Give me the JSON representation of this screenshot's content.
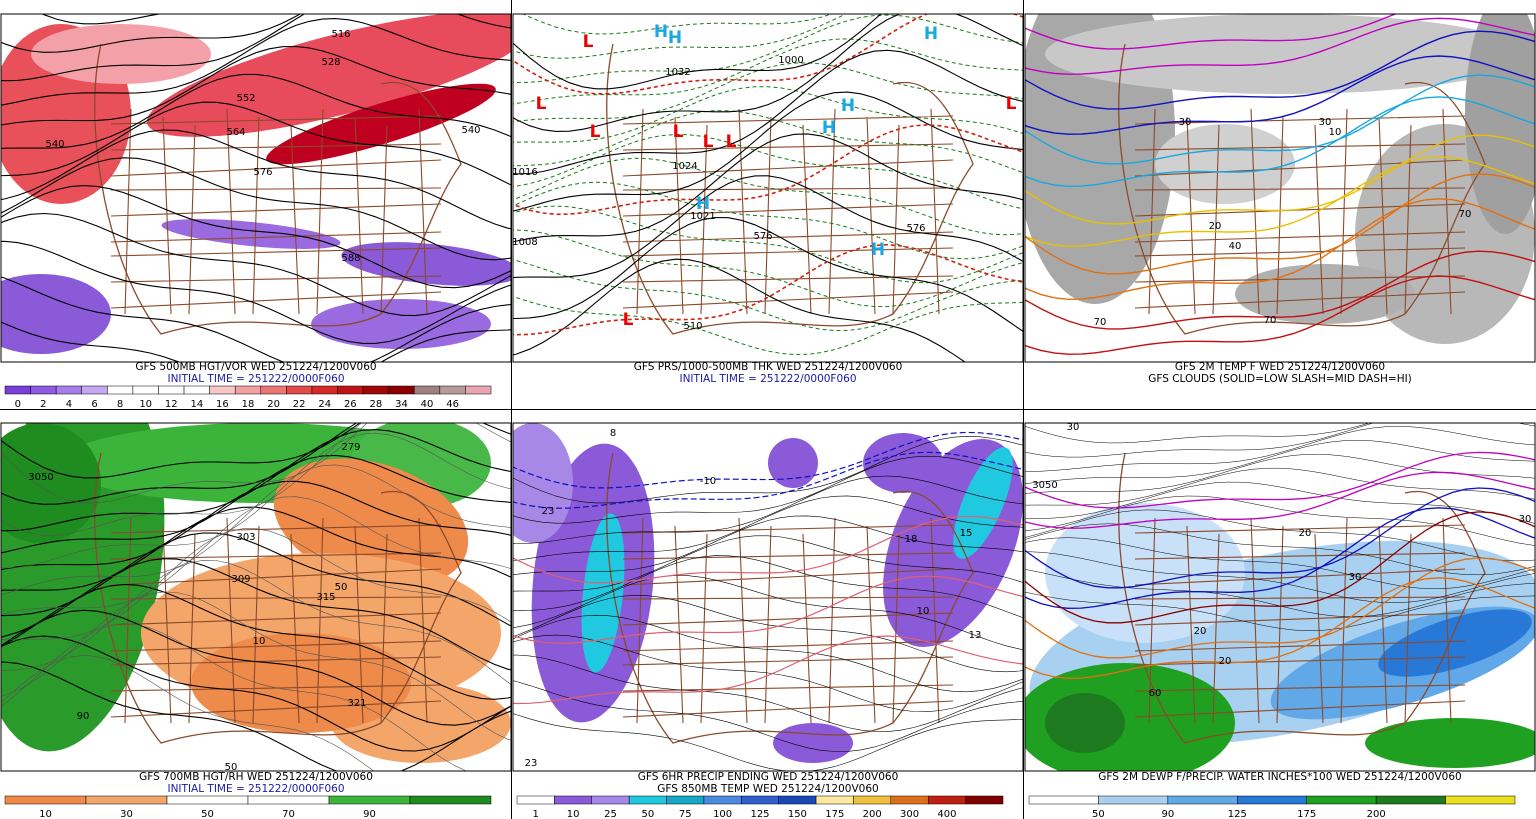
{
  "panels": [
    {
      "caption": [
        "GFS 500MB HGT/VOR WED 251224/1200V060",
        "INITIAL TIME = 251222/0000F060"
      ],
      "colorbar": {
        "colors": [
          "#7a3fd9",
          "#8d5ae0",
          "#a57ee8",
          "#c4a9f0",
          "#ffffff",
          "#ffffff",
          "#ffffff",
          "#ffffff",
          "#f7c6c6",
          "#f2a0a0",
          "#ea7676",
          "#e24b4b",
          "#d62828",
          "#c01414",
          "#a00808",
          "#8a0000",
          "#a08080",
          "#b89a9a",
          "#e8a6b4"
        ],
        "labels": [
          0,
          2,
          4,
          6,
          8,
          10,
          12,
          14,
          16,
          18,
          20,
          22,
          24,
          26,
          28,
          34,
          40,
          46
        ]
      },
      "map_labels": [
        "516",
        "528",
        "552",
        "564",
        "576",
        "588",
        "540",
        "540"
      ]
    },
    {
      "caption": [
        "GFS PRS/1000-500MB THK WED 251224/1200V060",
        "INITIAL TIME = 251222/0000F060"
      ],
      "map_labels": [
        "L",
        "L",
        "L",
        "L",
        "L",
        "L",
        "L",
        "L",
        "H",
        "H",
        "H",
        "H",
        "H",
        "H",
        "H",
        "510",
        "1000",
        "1016",
        "1024",
        "1021",
        "576",
        "576",
        "1008",
        "1032"
      ]
    },
    {
      "caption": [
        "GFS 2M TEMP F WED 251224/1200V060",
        "GFS CLOUDS (SOLID=LOW SLASH=MID DASH=HI)"
      ],
      "map_labels": [
        "30",
        "30",
        "20",
        "40",
        "70",
        "70",
        "10",
        "70"
      ]
    },
    {
      "caption": [
        "GFS 700MB HGT/RH WED 251224/1200V060",
        "INITIAL TIME = 251222/0000F060"
      ],
      "colorbar": {
        "colors": [
          "#ee8a4a",
          "#f4a66a",
          "#ffffff",
          "#ffffff",
          "#3cb43c",
          "#1e8c1e"
        ],
        "labels": [
          10,
          30,
          50,
          70,
          90
        ]
      },
      "map_labels": [
        "303",
        "309",
        "315",
        "321",
        "50",
        "10",
        "90",
        "50",
        "3050",
        "279"
      ]
    },
    {
      "caption": [
        "GFS 6HR PRECIP ENDING WED 251224/1200V060",
        "GFS 850MB TEMP WED 251224/1200V060"
      ],
      "colorbar": {
        "colors": [
          "#ffffff",
          "#8a5ad8",
          "#a888e6",
          "#20c8e0",
          "#18a8c8",
          "#4c8ce0",
          "#3060d0",
          "#1848b8",
          "#ffe8a0",
          "#f0c040",
          "#e07020",
          "#c02010",
          "#800000"
        ],
        "labels": [
          1,
          10,
          25,
          50,
          75,
          100,
          125,
          150,
          175,
          200,
          300,
          400
        ]
      },
      "map_labels": [
        "-10",
        "18",
        "23",
        "13",
        "10",
        "23",
        "8",
        "15"
      ]
    },
    {
      "caption": [
        "GFS 2M DEWP F/PRECIP. WATER INCHES*100 WED 251224/1200V060"
      ],
      "colorbar": {
        "colors": [
          "#ffffff",
          "#a8d0f0",
          "#60a8e8",
          "#2878d8",
          "#20a020",
          "#1e7a1e",
          "#e8e020"
        ],
        "labels": [
          50,
          90,
          125,
          175,
          200
        ]
      },
      "map_labels": [
        "30",
        "3050",
        "20",
        "30",
        "20",
        "20",
        "30",
        "60"
      ]
    }
  ]
}
